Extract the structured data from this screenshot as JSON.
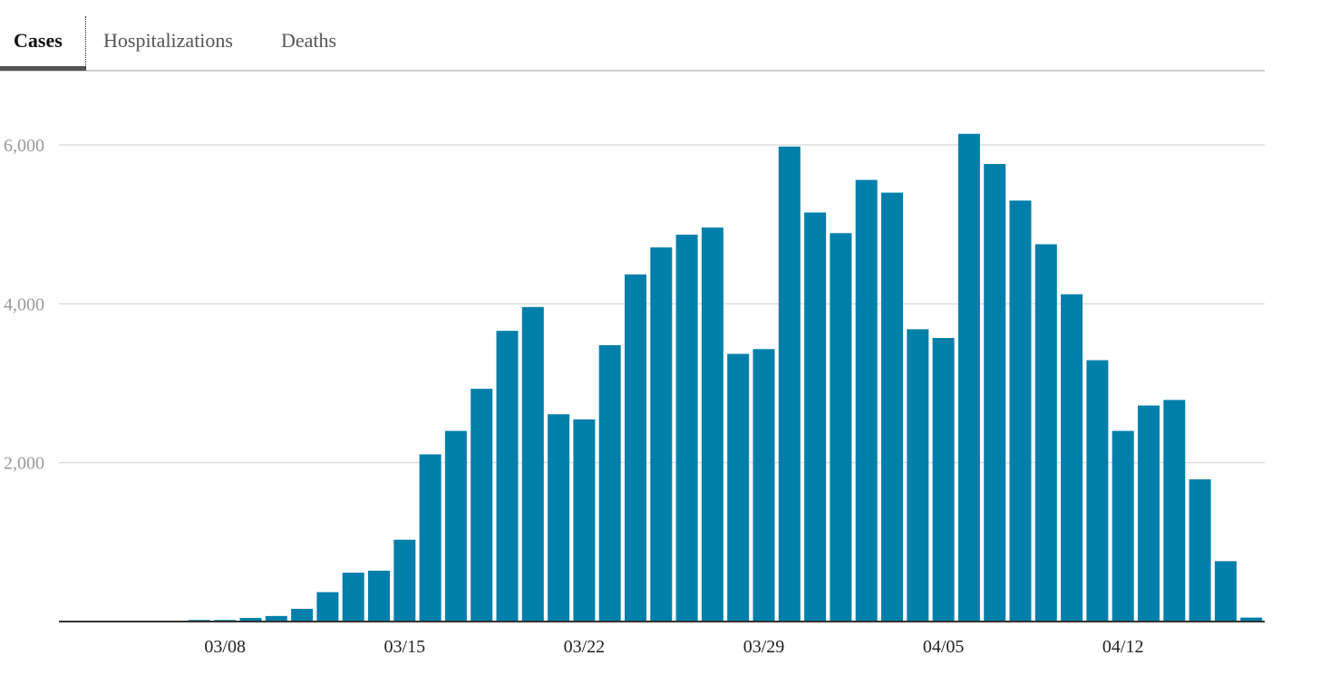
{
  "tabs": [
    {
      "label": "Cases",
      "active": true
    },
    {
      "label": "Hospitalizations",
      "active": false
    },
    {
      "label": "Deaths",
      "active": false
    }
  ],
  "chart_data": {
    "type": "bar",
    "bar_color": "#007fab",
    "grid": true,
    "ylim": [
      0,
      6000
    ],
    "y_ticks": [
      2000,
      4000,
      6000
    ],
    "y_tick_labels": [
      "2,000",
      "4,000",
      "6,000"
    ],
    "x_tick_labels": [
      "03/08",
      "03/15",
      "03/22",
      "03/29",
      "04/05",
      "04/12"
    ],
    "categories": [
      "03/02",
      "03/03",
      "03/04",
      "03/05",
      "03/06",
      "03/07",
      "03/08",
      "03/09",
      "03/10",
      "03/11",
      "03/12",
      "03/13",
      "03/14",
      "03/15",
      "03/16",
      "03/17",
      "03/18",
      "03/19",
      "03/20",
      "03/21",
      "03/22",
      "03/23",
      "03/24",
      "03/25",
      "03/26",
      "03/27",
      "03/28",
      "03/29",
      "03/30",
      "03/31",
      "04/01",
      "04/02",
      "04/03",
      "04/04",
      "04/05",
      "04/06",
      "04/07",
      "04/08",
      "04/09",
      "04/10",
      "04/11",
      "04/12",
      "04/13",
      "04/14",
      "04/15",
      "04/16",
      "04/17"
    ],
    "values": [
      0,
      0,
      0,
      0,
      0,
      20,
      20,
      45,
      70,
      160,
      370,
      615,
      640,
      1030,
      2105,
      2400,
      2930,
      3660,
      3960,
      2610,
      2545,
      3480,
      4370,
      4710,
      4870,
      4960,
      3370,
      3430,
      5980,
      5150,
      4890,
      5560,
      5400,
      3680,
      3570,
      6140,
      5760,
      5300,
      4750,
      4120,
      3290,
      2400,
      2720,
      2790,
      1790,
      760,
      50
    ]
  }
}
